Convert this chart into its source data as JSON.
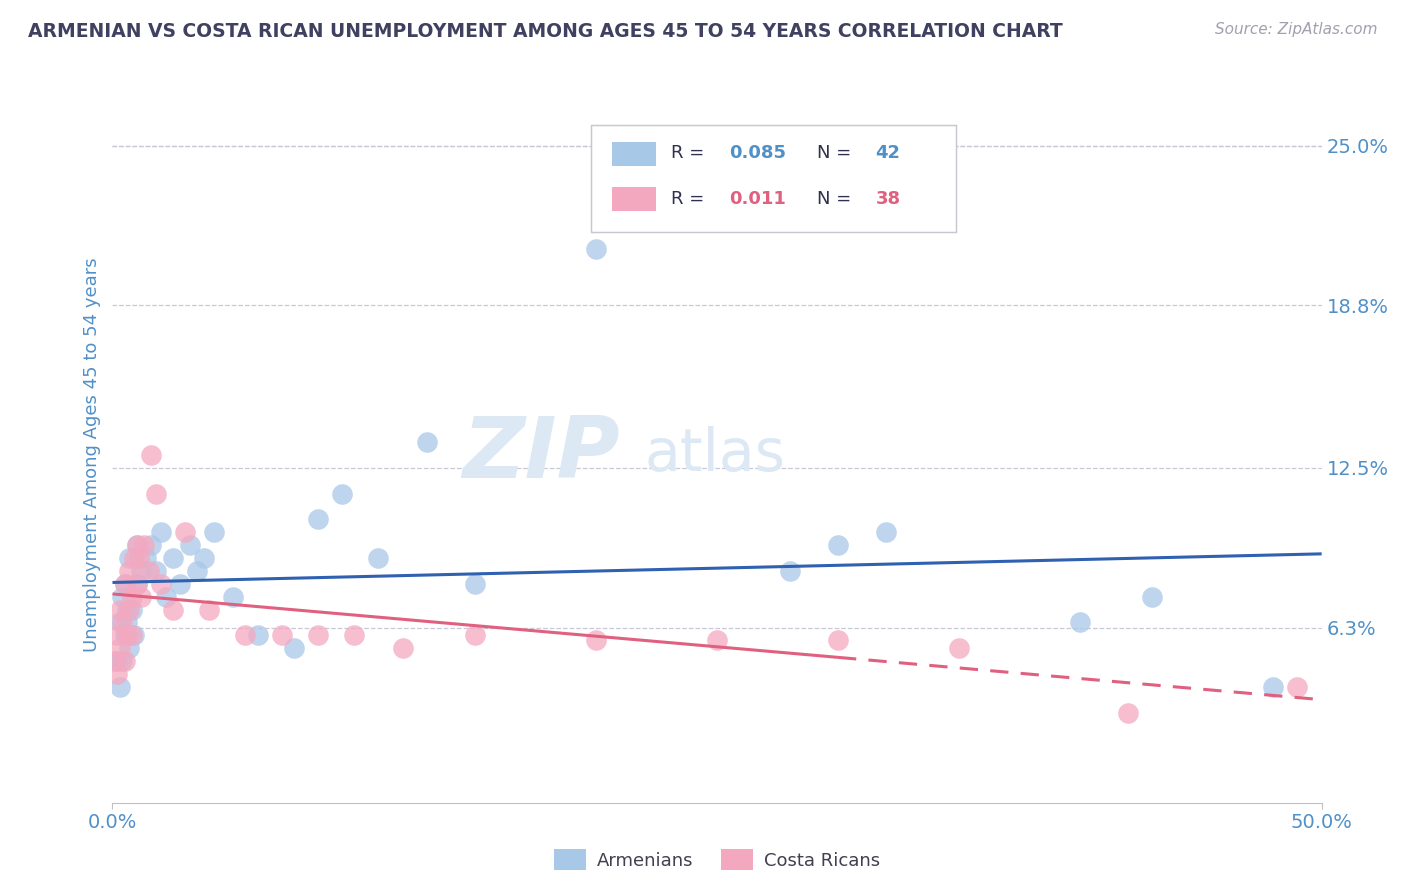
{
  "title": "ARMENIAN VS COSTA RICAN UNEMPLOYMENT AMONG AGES 45 TO 54 YEARS CORRELATION CHART",
  "source": "Source: ZipAtlas.com",
  "ylabel": "Unemployment Among Ages 45 to 54 years",
  "xlim": [
    0.0,
    0.5
  ],
  "ylim": [
    -0.005,
    0.265
  ],
  "armenian_r": 0.085,
  "armenian_n": 42,
  "costa_rican_r": 0.011,
  "costa_rican_n": 38,
  "armenian_color": "#a8c8e8",
  "costa_rican_color": "#f4a8c0",
  "armenian_line_color": "#3060b0",
  "costa_rican_line_color": "#e06080",
  "background_color": "#ffffff",
  "grid_color": "#c8c8d8",
  "label_color": "#5090c8",
  "title_color": "#404060",
  "armenians_x": [
    0.002,
    0.003,
    0.003,
    0.004,
    0.004,
    0.005,
    0.005,
    0.006,
    0.006,
    0.007,
    0.007,
    0.008,
    0.009,
    0.01,
    0.01,
    0.012,
    0.014,
    0.016,
    0.018,
    0.02,
    0.022,
    0.025,
    0.028,
    0.032,
    0.035,
    0.038,
    0.042,
    0.05,
    0.06,
    0.075,
    0.085,
    0.095,
    0.11,
    0.13,
    0.15,
    0.2,
    0.28,
    0.3,
    0.32,
    0.4,
    0.43,
    0.48
  ],
  "armenians_y": [
    0.05,
    0.04,
    0.065,
    0.05,
    0.075,
    0.06,
    0.08,
    0.065,
    0.07,
    0.055,
    0.09,
    0.07,
    0.06,
    0.08,
    0.095,
    0.085,
    0.09,
    0.095,
    0.085,
    0.1,
    0.075,
    0.09,
    0.08,
    0.095,
    0.085,
    0.09,
    0.1,
    0.075,
    0.06,
    0.055,
    0.105,
    0.115,
    0.09,
    0.135,
    0.08,
    0.21,
    0.085,
    0.095,
    0.1,
    0.065,
    0.075,
    0.04
  ],
  "costa_ricans_x": [
    0.001,
    0.002,
    0.002,
    0.003,
    0.003,
    0.004,
    0.005,
    0.005,
    0.006,
    0.007,
    0.007,
    0.008,
    0.008,
    0.009,
    0.01,
    0.01,
    0.011,
    0.012,
    0.013,
    0.015,
    0.016,
    0.018,
    0.02,
    0.025,
    0.03,
    0.04,
    0.055,
    0.07,
    0.085,
    0.1,
    0.12,
    0.15,
    0.2,
    0.25,
    0.3,
    0.35,
    0.42,
    0.49
  ],
  "costa_ricans_y": [
    0.05,
    0.045,
    0.06,
    0.055,
    0.07,
    0.065,
    0.05,
    0.08,
    0.06,
    0.07,
    0.085,
    0.075,
    0.06,
    0.09,
    0.08,
    0.095,
    0.09,
    0.075,
    0.095,
    0.085,
    0.13,
    0.115,
    0.08,
    0.07,
    0.1,
    0.07,
    0.06,
    0.06,
    0.06,
    0.06,
    0.055,
    0.06,
    0.058,
    0.058,
    0.058,
    0.055,
    0.03,
    0.04
  ],
  "ytick_positions": [
    0.0,
    0.063,
    0.125,
    0.188,
    0.25
  ],
  "ytick_labels": [
    "",
    "6.3%",
    "12.5%",
    "18.8%",
    "25.0%"
  ]
}
